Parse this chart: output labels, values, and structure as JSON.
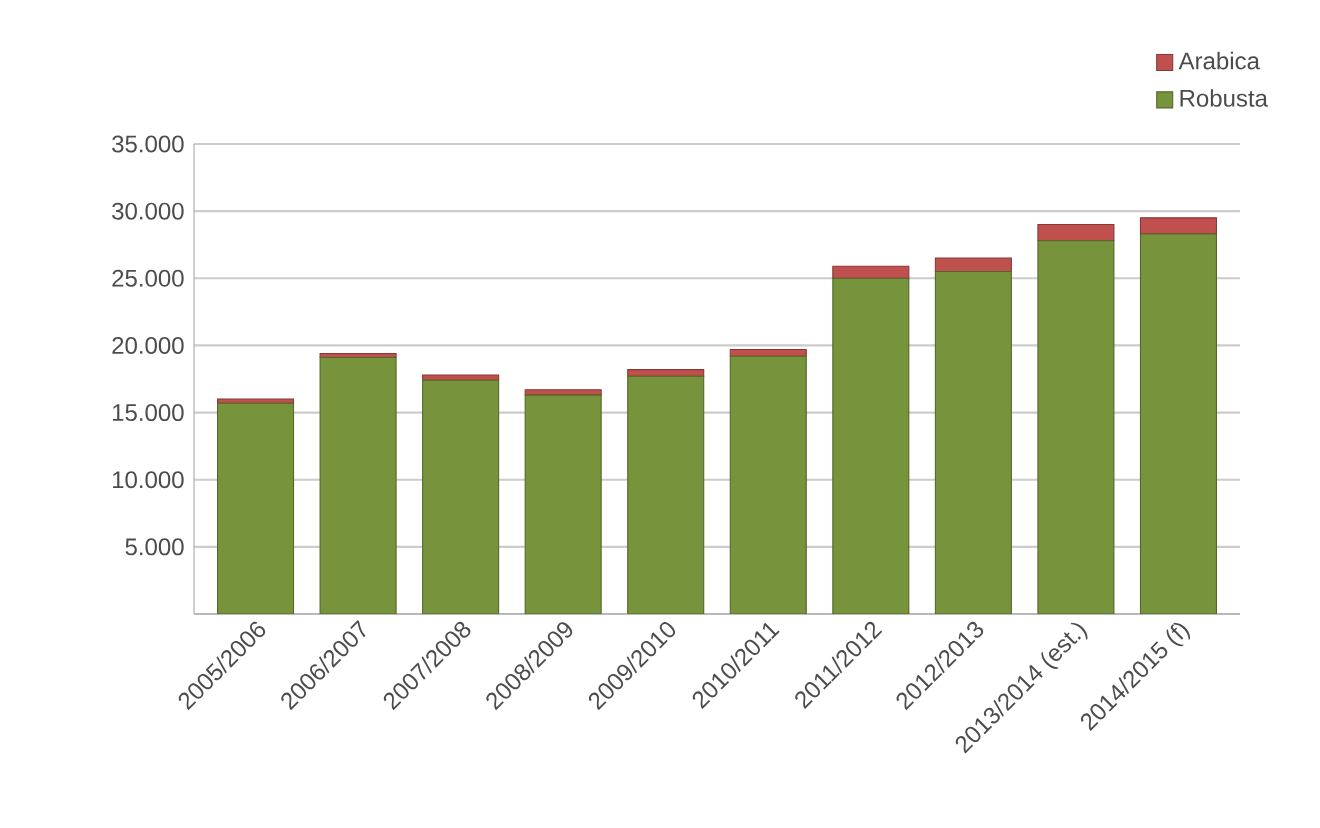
{
  "chart_data": {
    "type": "bar",
    "stacked": true,
    "categories": [
      "2005/2006",
      "2006/2007",
      "2007/2008",
      "2008/2009",
      "2009/2010",
      "2010/2011",
      "2011/2012",
      "2012/2013",
      "2013/2014 (est.)",
      "2014/2015 (f)"
    ],
    "series": [
      {
        "name": "Robusta",
        "color": "#77933c",
        "values": [
          15700,
          19100,
          17400,
          16300,
          17700,
          19200,
          25000,
          25500,
          27800,
          28300
        ]
      },
      {
        "name": "Arabica",
        "color": "#c0504d",
        "values": [
          300,
          300,
          400,
          400,
          500,
          500,
          900,
          1000,
          1200,
          1200
        ]
      }
    ],
    "ylim": [
      0,
      35000
    ],
    "yticks": [
      {
        "value": 0,
        "label": null
      },
      {
        "value": 5000,
        "label": "5.000"
      },
      {
        "value": 10000,
        "label": "10.000"
      },
      {
        "value": 15000,
        "label": "15.000"
      },
      {
        "value": 20000,
        "label": "20.000"
      },
      {
        "value": 25000,
        "label": "25.000"
      },
      {
        "value": 30000,
        "label": "30.000"
      },
      {
        "value": 35000,
        "label": "35.000"
      }
    ],
    "grid": "y",
    "legend": "top right"
  }
}
